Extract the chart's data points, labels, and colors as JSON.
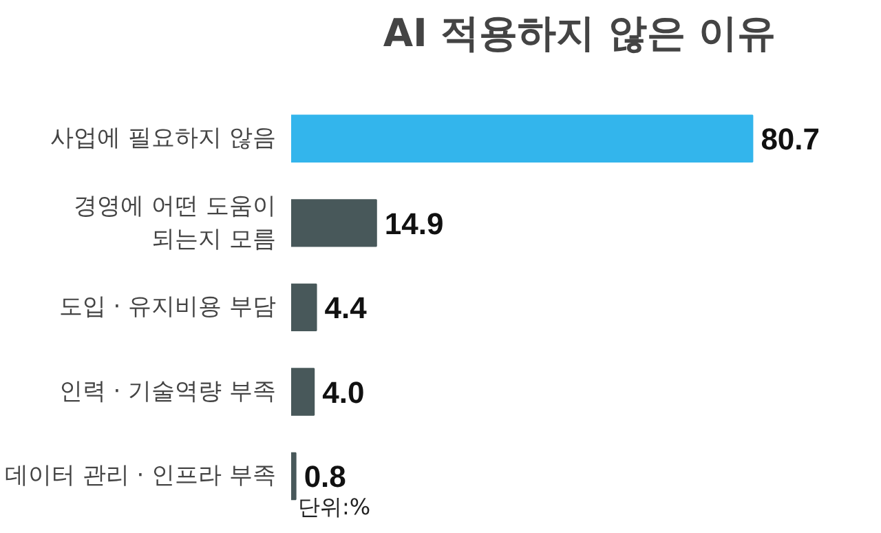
{
  "chart_data": {
    "type": "bar",
    "orientation": "horizontal",
    "title": "AI 적용하지 않은 이유",
    "annotations": [
      "단위:%"
    ],
    "categories": [
      "사업에 필요하지 않음",
      "경영에 어떤 도움이\n되는지 모름",
      "도입 · 유지비용 부담",
      "인력 · 기술역량 부족",
      "데이터 관리 · 인프라 부족"
    ],
    "values": [
      80.7,
      14.9,
      4.4,
      4.0,
      0.8
    ],
    "colors": [
      "#33b5ec",
      "#48585a",
      "#48585a",
      "#48585a",
      "#48585a"
    ],
    "value_labels": [
      "80.7",
      "14.9",
      "4.4",
      "4.0",
      "0.8"
    ]
  }
}
